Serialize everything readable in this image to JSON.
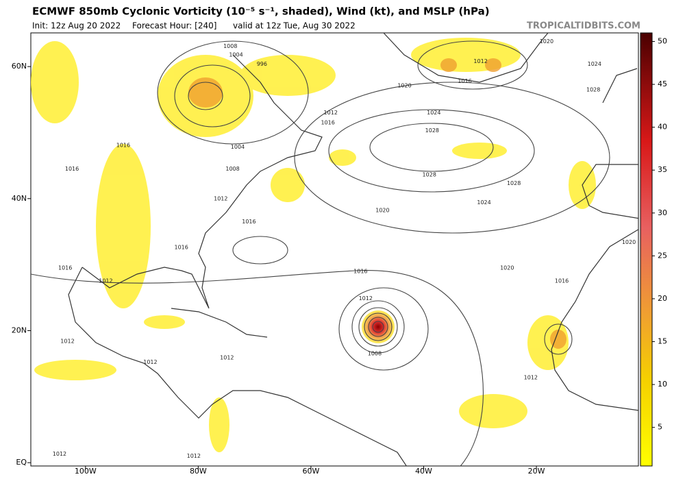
{
  "header": {
    "title": "ECMWF 850mb Cyclonic Vorticity (10⁻⁵ s⁻¹, shaded), Wind (kt), and MSLP (hPa)",
    "init": "Init: 12z Aug 20 2022",
    "forecast_hour": "Forecast Hour: [240]",
    "valid": "valid at 12z Tue, Aug 30 2022",
    "site": "TROPICALTIDBITS.COM"
  },
  "map": {
    "xlim": [
      -109.7,
      -1.9
    ],
    "ylim": [
      -0.5,
      65.1
    ],
    "xticks": [
      {
        "value": -100,
        "label": "100W"
      },
      {
        "value": -80,
        "label": "80W"
      },
      {
        "value": -60,
        "label": "60W"
      },
      {
        "value": -40,
        "label": "40W"
      },
      {
        "value": -20,
        "label": "20W"
      }
    ],
    "yticks": [
      {
        "value": 60,
        "label": "60N"
      },
      {
        "value": 40,
        "label": "40N"
      },
      {
        "value": 20,
        "label": "20N"
      },
      {
        "value": 0,
        "label": "EQ"
      }
    ],
    "isobar_labels": [
      {
        "value": 1008,
        "lon": -74.3,
        "lat": 63.1
      },
      {
        "value": 1004,
        "lon": -73.3,
        "lat": 61.8
      },
      {
        "value": 996,
        "lon": -68.7,
        "lat": 60.4
      },
      {
        "value": 1020,
        "lon": -18.2,
        "lat": 63.8
      },
      {
        "value": 1012,
        "lon": -29.9,
        "lat": 60.8
      },
      {
        "value": 1016,
        "lon": -32.7,
        "lat": 57.8
      },
      {
        "value": 1024,
        "lon": -9.7,
        "lat": 60.4
      },
      {
        "value": 1028,
        "lon": -9.9,
        "lat": 56.5
      },
      {
        "value": 1020,
        "lon": -43.4,
        "lat": 57.1
      },
      {
        "value": 1024,
        "lon": -38.2,
        "lat": 53.0
      },
      {
        "value": 1028,
        "lon": -38.5,
        "lat": 50.3
      },
      {
        "value": 1012,
        "lon": -56.5,
        "lat": 53.0
      },
      {
        "value": 1016,
        "lon": -57.0,
        "lat": 51.5
      },
      {
        "value": 1016,
        "lon": -93.3,
        "lat": 48.1
      },
      {
        "value": 1004,
        "lon": -73.0,
        "lat": 47.8
      },
      {
        "value": 1016,
        "lon": -102.4,
        "lat": 44.5
      },
      {
        "value": 1008,
        "lon": -73.9,
        "lat": 44.5
      },
      {
        "value": 1028,
        "lon": -39.0,
        "lat": 43.6
      },
      {
        "value": 1028,
        "lon": -24.0,
        "lat": 42.3
      },
      {
        "value": 1024,
        "lon": -29.3,
        "lat": 39.4
      },
      {
        "value": 1012,
        "lon": -76.0,
        "lat": 40.0
      },
      {
        "value": 1020,
        "lon": -47.3,
        "lat": 38.2
      },
      {
        "value": 1016,
        "lon": -71.0,
        "lat": 36.5
      },
      {
        "value": 1016,
        "lon": -83.0,
        "lat": 32.6
      },
      {
        "value": 1020,
        "lon": -3.6,
        "lat": 33.4
      },
      {
        "value": 1016,
        "lon": -51.2,
        "lat": 29.0
      },
      {
        "value": 1020,
        "lon": -25.2,
        "lat": 29.5
      },
      {
        "value": 1016,
        "lon": -15.5,
        "lat": 27.5
      },
      {
        "value": 1016,
        "lon": -103.6,
        "lat": 29.5
      },
      {
        "value": 1012,
        "lon": -96.4,
        "lat": 27.5
      },
      {
        "value": 1012,
        "lon": -50.3,
        "lat": 24.9
      },
      {
        "value": 1008,
        "lon": -48.7,
        "lat": 16.5
      },
      {
        "value": 1012,
        "lon": -103.2,
        "lat": 18.4
      },
      {
        "value": 1012,
        "lon": -88.5,
        "lat": 15.2
      },
      {
        "value": 1012,
        "lon": -74.9,
        "lat": 15.9
      },
      {
        "value": 1012,
        "lon": -21.0,
        "lat": 12.9
      },
      {
        "value": 1012,
        "lon": -104.6,
        "lat": 1.3
      },
      {
        "value": 1012,
        "lon": -80.8,
        "lat": 1.0
      }
    ]
  },
  "colorbar": {
    "lim": [
      0.5,
      51
    ],
    "ticks": [
      5,
      10,
      15,
      20,
      25,
      30,
      35,
      40,
      45,
      50
    ]
  }
}
